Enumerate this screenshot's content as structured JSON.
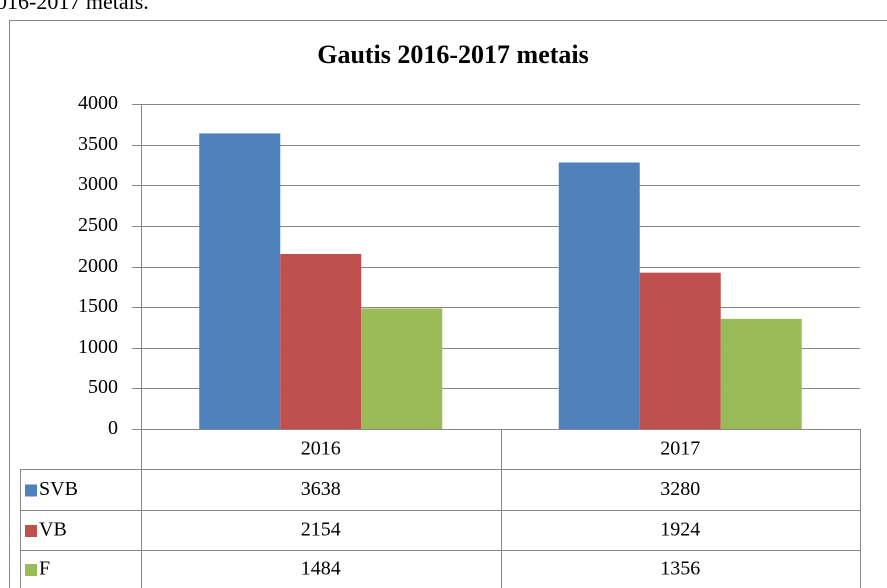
{
  "caption": "016-2017 metais.",
  "chart_data": {
    "type": "bar",
    "title": "Gautis 2016-2017 metais",
    "categories": [
      "2016",
      "2017"
    ],
    "series": [
      {
        "name": "SVB",
        "color": "#4f81bd",
        "values": [
          3638,
          3280
        ]
      },
      {
        "name": "VB",
        "color": "#c0504d",
        "values": [
          2154,
          1924
        ]
      },
      {
        "name": "F",
        "color": "#9bbb59",
        "values": [
          1484,
          1356
        ]
      }
    ],
    "ylim": [
      0,
      4000
    ],
    "yticks": [
      0,
      500,
      1000,
      1500,
      2000,
      2500,
      3000,
      3500,
      4000
    ],
    "grid": true,
    "data_table": true
  }
}
